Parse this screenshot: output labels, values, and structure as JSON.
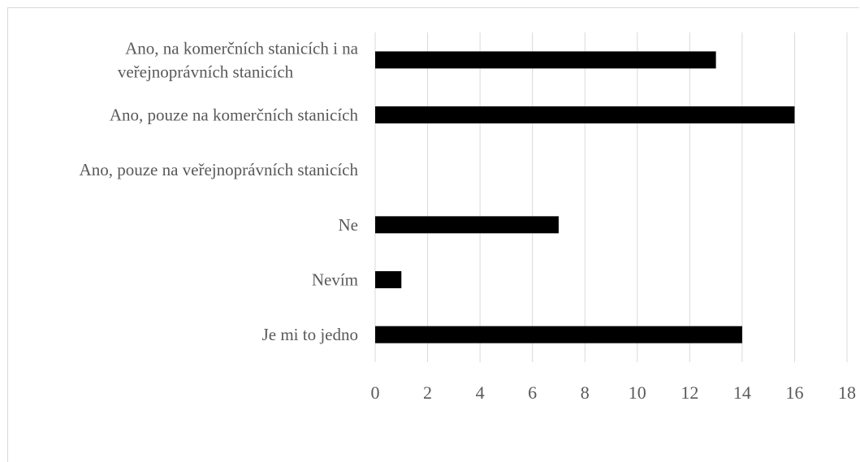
{
  "chart_data": {
    "type": "bar",
    "orientation": "horizontal",
    "categories": [
      [
        "Ano, na komerčních stanicích i na",
        "veřejnoprávních stanicích"
      ],
      [
        "Ano, pouze na komerčních stanicích"
      ],
      [
        "Ano, pouze na veřejnoprávních stanicích"
      ],
      [
        "Ne"
      ],
      [
        "Nevím"
      ],
      [
        "Je mi to jedno"
      ]
    ],
    "values": [
      13,
      16,
      0,
      7,
      1,
      14
    ],
    "xlim": [
      0,
      18
    ],
    "xticks": [
      "0",
      "2",
      "4",
      "6",
      "8",
      "10",
      "12",
      "14",
      "16",
      "18"
    ],
    "grid": true,
    "bar_color": "#000000",
    "grid_color": "#d9d9d9",
    "label_color": "#595959",
    "title": "",
    "xlabel": "",
    "ylabel": ""
  }
}
